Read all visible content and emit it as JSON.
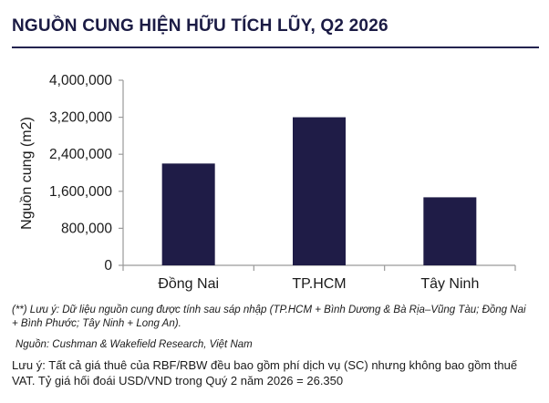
{
  "header": {
    "title": "NGUỒN CUNG HIỆN HỮU TÍCH LŨY, Q2 2026"
  },
  "chart_data": {
    "type": "bar",
    "title": "",
    "categories": [
      "Đồng Nai",
      "TP.HCM",
      "Tây Ninh"
    ],
    "values": [
      2200000,
      3200000,
      1470000
    ],
    "xlabel": "",
    "ylabel": "Nguồn cung (m2)",
    "ylim": [
      0,
      4000000
    ],
    "yticks": [
      0,
      800000,
      1600000,
      2400000,
      3200000,
      4000000
    ],
    "ytick_labels": [
      "0",
      "800,000",
      "1,600,000",
      "2,400,000",
      "3,200,000",
      "4,000,000"
    ],
    "grid": false,
    "legend": "none",
    "colors": {
      "bar": "#1f1c47",
      "axis": "#9a9a9a"
    }
  },
  "footer": {
    "note": "(**) Lưu ý: Dữ liệu nguồn cung được tính sau sáp nhập (TP.HCM + Bình Dương & Bà Rịa–Vũng Tàu; Đồng Nai + Bình Phước; Tây Ninh + Long An).",
    "source": "Nguồn: Cushman & Wakefield Research, Việt Nam",
    "disclaimer": "Lưu ý: Tất cả giá thuê của RBF/RBW đều bao gồm phí dịch vụ (SC) nhưng không bao gồm thuế VAT. Tỷ giá hối đoái USD/VND trong Quý 2 năm 2026 = 26.350"
  }
}
